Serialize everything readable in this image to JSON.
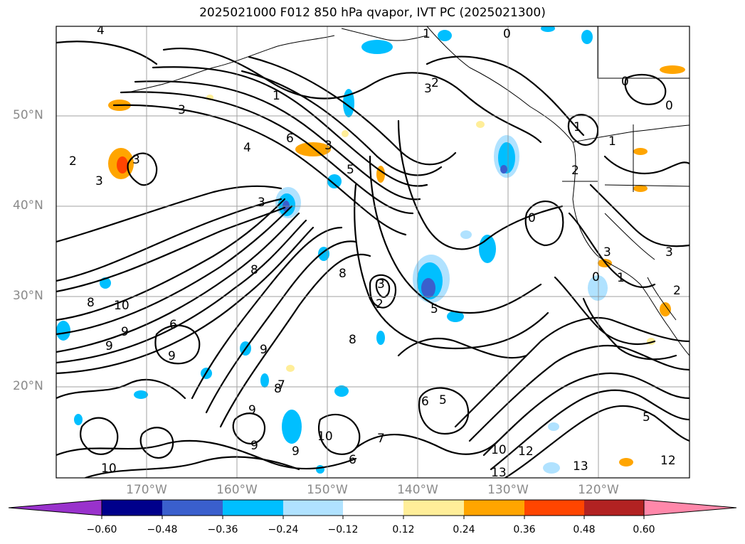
{
  "title": "2025021000 F012 850 hPa qvapor, IVT PC (2025021300)",
  "lat_labels": [
    "50°N",
    "40°N",
    "30°N",
    "20°N"
  ],
  "lon_labels": [
    "170°W",
    "160°W",
    "150°W",
    "140°W",
    "130°W",
    "120°W"
  ],
  "colorbar": {
    "ticks": [
      "−0.60",
      "−0.48",
      "−0.36",
      "−0.24",
      "−0.12",
      "0.12",
      "0.24",
      "0.36",
      "0.48",
      "0.60"
    ],
    "colors": [
      "#9932cc",
      "#00008b",
      "#3a5fcd",
      "#00bfff",
      "#b0e2ff",
      "#ffffff",
      "#ffee99",
      "#ffa500",
      "#ff4500",
      "#b22222",
      "#ff88aa"
    ]
  },
  "contour_labels": [
    "4",
    "3",
    "3",
    "2",
    "3",
    "4",
    "6",
    "5",
    "3",
    "3",
    "8",
    "8",
    "9",
    "10",
    "9",
    "9",
    "8",
    "9",
    "6",
    "8",
    "9",
    "9",
    "10",
    "10",
    "9",
    "6",
    "5",
    "6",
    "7",
    "10",
    "12",
    "13",
    "13",
    "12",
    "5",
    "3",
    "2",
    "3",
    "5",
    "1",
    "0",
    "0",
    "0",
    "1",
    "2",
    "1",
    "0",
    "3",
    "1",
    "0",
    "2",
    "3",
    "2",
    "8",
    "7",
    "1"
  ]
}
